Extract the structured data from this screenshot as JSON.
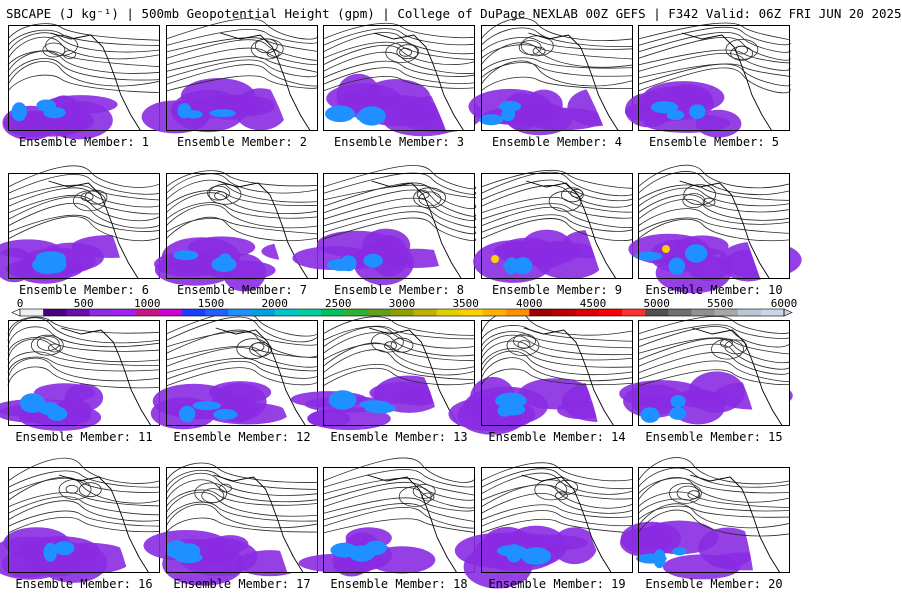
{
  "header": {
    "title": "SBCAPE (J kg⁻¹) | 500mb Geopotential Height (gpm) | College of DuPage NEXLAB 00Z GEFS | F342 Valid: 06Z FRI JUN 20 2025"
  },
  "panels": [
    {
      "label": "Ensemble Member: 1"
    },
    {
      "label": "Ensemble Member: 2"
    },
    {
      "label": "Ensemble Member: 3"
    },
    {
      "label": "Ensemble Member: 4"
    },
    {
      "label": "Ensemble Member: 5"
    },
    {
      "label": "Ensemble Member: 6"
    },
    {
      "label": "Ensemble Member: 7"
    },
    {
      "label": "Ensemble Member: 8"
    },
    {
      "label": "Ensemble Member: 9"
    },
    {
      "label": "Ensemble Member: 10"
    },
    {
      "label": "Ensemble Member: 11"
    },
    {
      "label": "Ensemble Member: 12"
    },
    {
      "label": "Ensemble Member: 13"
    },
    {
      "label": "Ensemble Member: 14"
    },
    {
      "label": "Ensemble Member: 15"
    },
    {
      "label": "Ensemble Member: 16"
    },
    {
      "label": "Ensemble Member: 17"
    },
    {
      "label": "Ensemble Member: 18"
    },
    {
      "label": "Ensemble Member: 19"
    },
    {
      "label": "Ensemble Member: 20"
    }
  ],
  "colorbar": {
    "ticks": [
      "0",
      "500",
      "1000",
      "1500",
      "2000",
      "2500",
      "3000",
      "3500",
      "4000",
      "4500",
      "5000",
      "5500",
      "6000"
    ],
    "colors": [
      "#f0f0f0",
      "#4b0082",
      "#6a0dad",
      "#8a2be2",
      "#a020f0",
      "#c71585",
      "#d000d0",
      "#1e3cff",
      "#2060ff",
      "#1e90ff",
      "#00a0e0",
      "#00c8c8",
      "#00d0a0",
      "#00c060",
      "#30b030",
      "#60a020",
      "#90a000",
      "#c0b000",
      "#e0d000",
      "#ffd000",
      "#ffb000",
      "#ff9000",
      "#a00000",
      "#c00000",
      "#e00000",
      "#ff0000",
      "#ff3030",
      "#505050",
      "#707070",
      "#909090",
      "#a8a8a8",
      "#b8c8d8",
      "#c8d8e8"
    ]
  },
  "legend_colors": {
    "contour": "#2a2a2a",
    "coastline": "#000000",
    "cape_low": "#8a2be2",
    "cape_mid": "#1e90ff",
    "cape_high": "#ffd000"
  }
}
